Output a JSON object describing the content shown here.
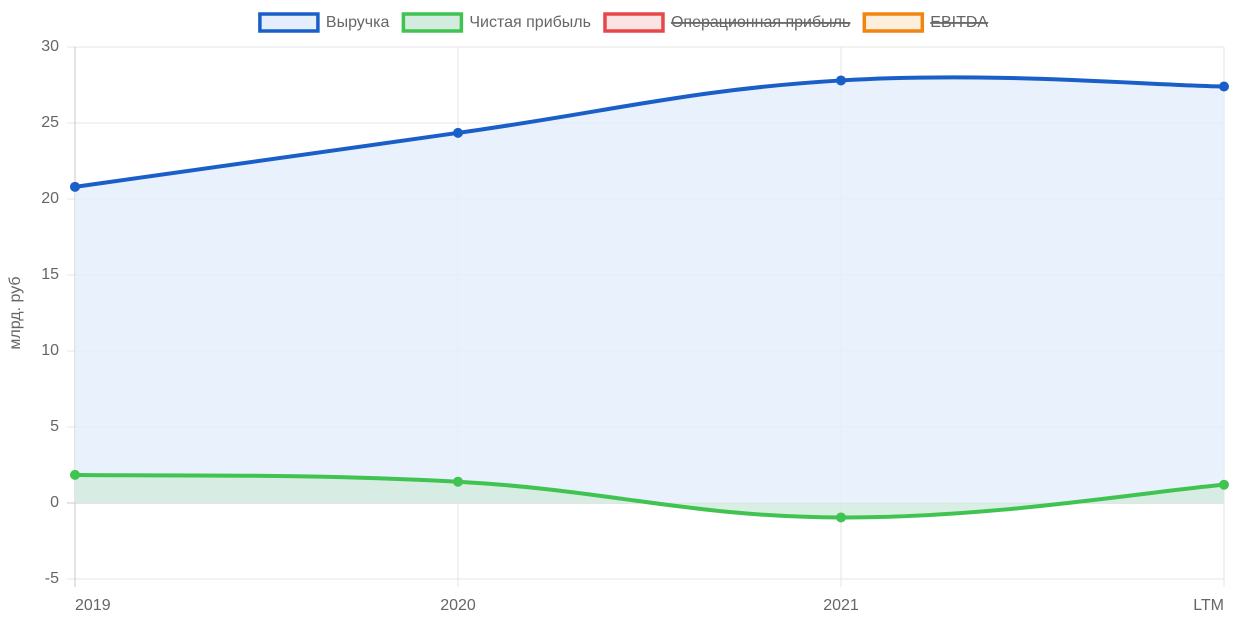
{
  "chart_data": {
    "type": "line",
    "y_label": "млрд. руб",
    "categories": [
      "2019",
      "2020",
      "2021",
      "LTM"
    ],
    "series": [
      {
        "name": "Выручка",
        "color": "#1a5fc8",
        "fill": "#e4eefc",
        "hidden": false,
        "values": [
          20.8,
          24.35,
          27.8,
          27.4
        ]
      },
      {
        "name": "Чистая прибыль",
        "color": "#40c351",
        "fill": "#d3ecdf",
        "hidden": false,
        "values": [
          1.85,
          1.4,
          -0.95,
          1.2
        ]
      },
      {
        "name": "Операционная прибыль",
        "color": "#e8474a",
        "fill": "#fde4e4",
        "hidden": true,
        "values": [
          null,
          null,
          null,
          null
        ]
      },
      {
        "name": "EBITDA",
        "color": "#f0860f",
        "fill": "#fdefdc",
        "hidden": true,
        "values": [
          null,
          null,
          null,
          null
        ]
      }
    ],
    "ylim": [
      -5,
      30
    ],
    "yticks": [
      -5,
      0,
      5,
      10,
      15,
      20,
      25,
      30
    ],
    "grid": true,
    "legend": "top"
  }
}
